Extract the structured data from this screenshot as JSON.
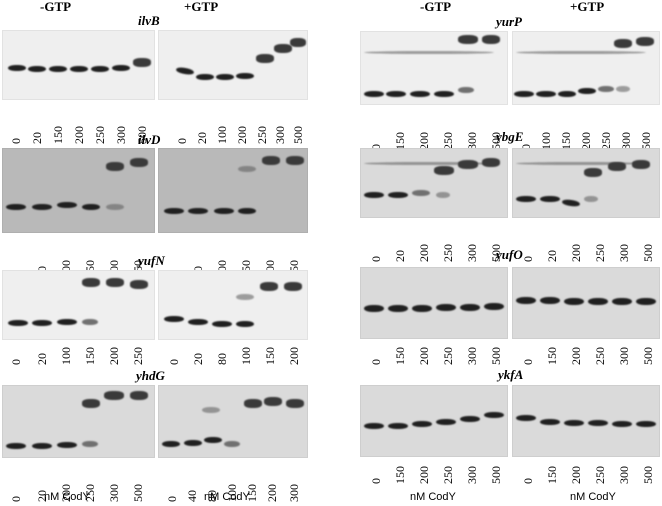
{
  "conditions": {
    "minus": "-GTP",
    "plus": "+GTP"
  },
  "axis_label": "nM CodY",
  "panels": [
    {
      "gene": "ilvB",
      "minus": [
        "0",
        "20",
        "150",
        "200",
        "250",
        "300",
        "500"
      ],
      "plus": [
        "0",
        "20",
        "100",
        "200",
        "250",
        "300",
        "500"
      ]
    },
    {
      "gene": "ilvD",
      "minus": [
        "0",
        "20",
        "100",
        "150",
        "200",
        "250"
      ],
      "plus": [
        "0",
        "20",
        "100",
        "150",
        "200",
        "250"
      ]
    },
    {
      "gene": "yufN",
      "minus": [
        "0",
        "20",
        "100",
        "150",
        "200",
        "250"
      ],
      "plus": [
        "0",
        "20",
        "80",
        "100",
        "150",
        "200"
      ]
    },
    {
      "gene": "yhdG",
      "minus": [
        "0",
        "20",
        "200",
        "250",
        "300",
        "500"
      ],
      "plus": [
        "0",
        "40",
        "80",
        "100",
        "150",
        "200",
        "300"
      ]
    },
    {
      "gene": "yurP",
      "minus": [
        "0",
        "150",
        "200",
        "250",
        "300",
        "500"
      ],
      "plus": [
        "0",
        "100",
        "150",
        "200",
        "250",
        "300",
        "500"
      ]
    },
    {
      "gene": "ybgE",
      "minus": [
        "0",
        "20",
        "200",
        "250",
        "300",
        "500"
      ],
      "plus": [
        "0",
        "20",
        "200",
        "250",
        "300",
        "500"
      ]
    },
    {
      "gene": "yufO",
      "minus": [
        "0",
        "150",
        "200",
        "250",
        "300",
        "500"
      ],
      "plus": [
        "0",
        "150",
        "200",
        "250",
        "300",
        "500"
      ]
    },
    {
      "gene": "ykfA",
      "minus": [
        "0",
        "150",
        "200",
        "250",
        "300",
        "500"
      ],
      "plus": [
        "0",
        "150",
        "200",
        "250",
        "300",
        "500"
      ]
    }
  ]
}
